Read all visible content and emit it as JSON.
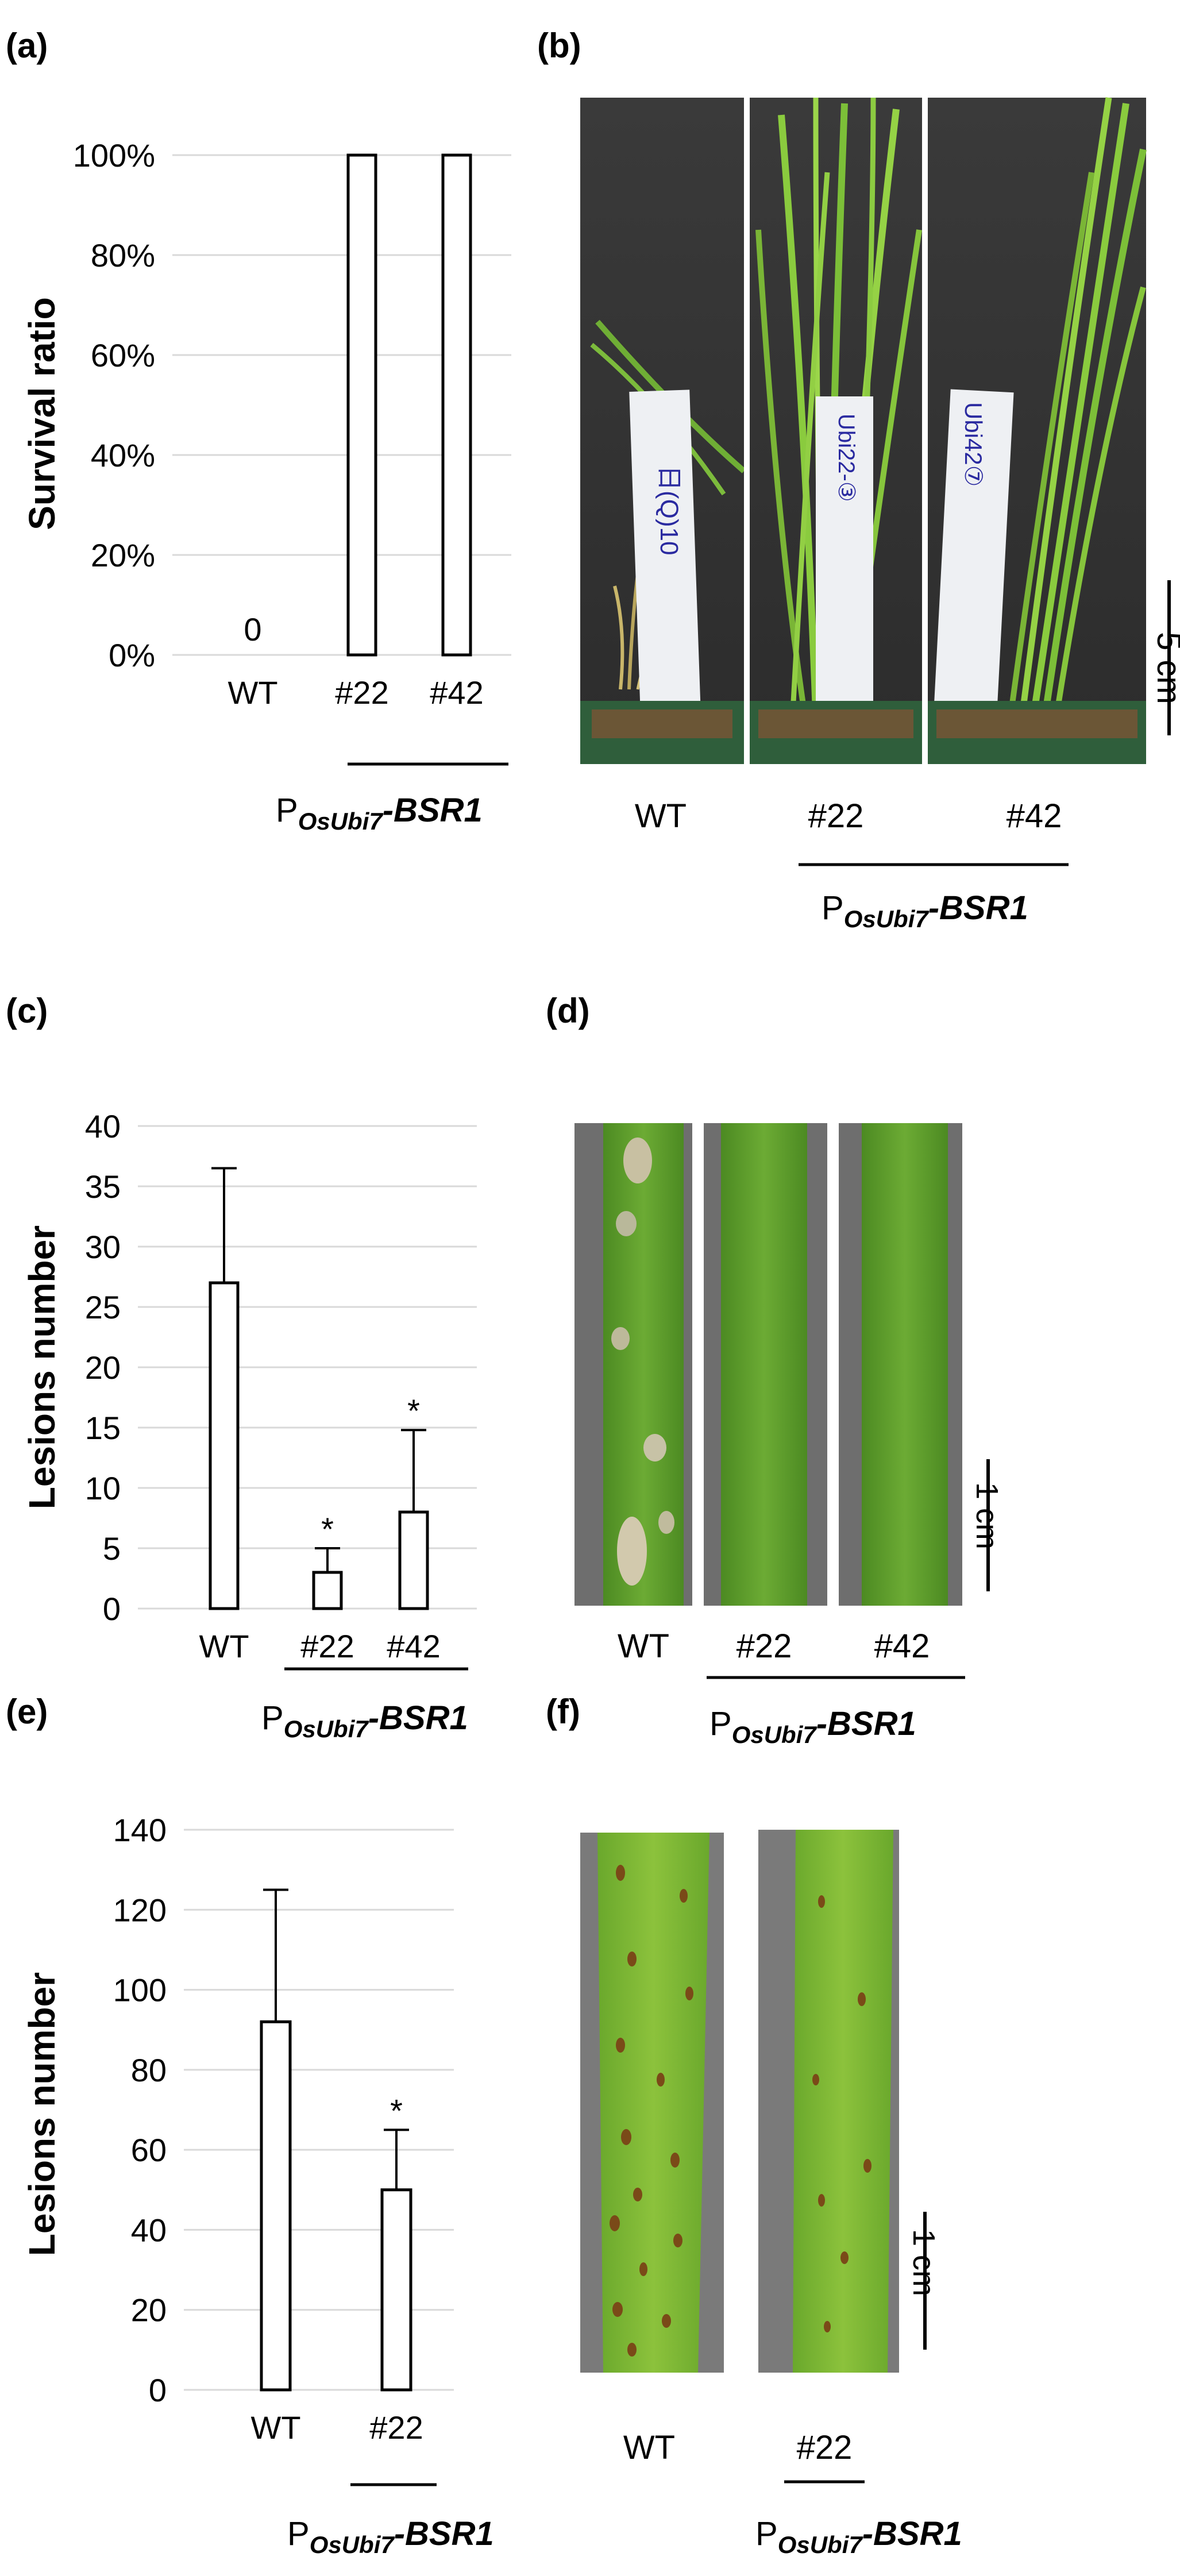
{
  "panels": {
    "a": {
      "label": "(a)"
    },
    "b": {
      "label": "(b)",
      "scale": "5 cm",
      "tags": [
        "日(Q)10",
        "Ubi22-③",
        "Ubi42⑦"
      ]
    },
    "c": {
      "label": "(c)"
    },
    "d": {
      "label": "(d)",
      "scale": "1 cm"
    },
    "e": {
      "label": "(e)"
    },
    "f": {
      "label": "(f)",
      "scale": "1 cm"
    }
  },
  "genotype": {
    "prefix": "P",
    "sub": "OsUbi7",
    "suffix": "-BSR1"
  },
  "labels": {
    "wt": "WT",
    "l22": "#22",
    "l42": "#42"
  },
  "significance": "*",
  "colors": {
    "bar_fill": "#ffffff",
    "bar_stroke": "#000000",
    "grid": "#d9d9d9",
    "leaf_green": "#5f9e2d",
    "background_photo": "#3a3a3a"
  },
  "chart_data": [
    {
      "id": "a",
      "type": "bar",
      "categories": [
        "WT",
        "#22",
        "#42"
      ],
      "values": [
        0,
        100,
        100
      ],
      "data_labels": [
        "0",
        "",
        ""
      ],
      "ylabel": "Survival ratio",
      "ylim": [
        0,
        100
      ],
      "yticks": [
        0,
        20,
        40,
        60,
        80,
        100
      ],
      "ytick_labels": [
        "0%",
        "20%",
        "40%",
        "60%",
        "80%",
        "100%"
      ],
      "grid": true,
      "group_label": "POsUbi7-BSR1"
    },
    {
      "id": "c",
      "type": "bar",
      "categories": [
        "WT",
        "#22",
        "#42"
      ],
      "values": [
        27,
        3,
        8
      ],
      "errors": [
        9.5,
        2,
        6.8
      ],
      "significant": [
        false,
        true,
        true
      ],
      "ylabel": "Lesions number",
      "ylim": [
        0,
        40
      ],
      "yticks": [
        0,
        5,
        10,
        15,
        20,
        25,
        30,
        35,
        40
      ],
      "ytick_labels": [
        "0",
        "5",
        "10",
        "15",
        "20",
        "25",
        "30",
        "35",
        "40"
      ],
      "grid": true,
      "group_label": "POsUbi7-BSR1"
    },
    {
      "id": "e",
      "type": "bar",
      "categories": [
        "WT",
        "#22"
      ],
      "values": [
        92,
        50
      ],
      "errors": [
        33,
        15
      ],
      "significant": [
        false,
        true
      ],
      "ylabel": "Lesions number",
      "ylim": [
        0,
        140
      ],
      "yticks": [
        0,
        20,
        40,
        60,
        80,
        100,
        120,
        140
      ],
      "ytick_labels": [
        "0",
        "20",
        "40",
        "60",
        "80",
        "100",
        "120",
        "140"
      ],
      "grid": true,
      "group_label": "POsUbi7-BSR1"
    }
  ]
}
